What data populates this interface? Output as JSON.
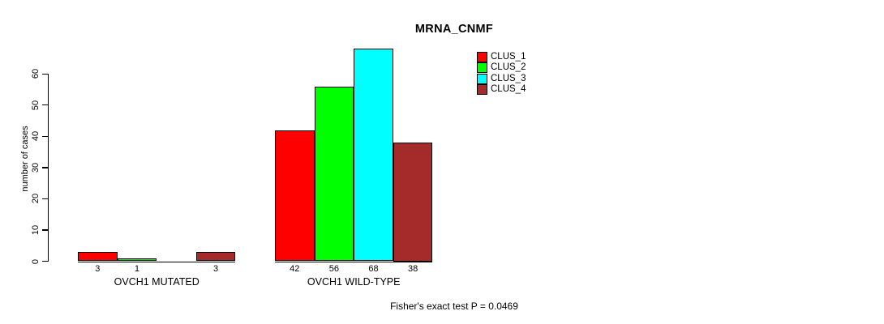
{
  "chart_data": {
    "type": "bar",
    "title": "MRNA_CNMF",
    "ylabel": "number of cases",
    "xlabel": "",
    "groups": [
      "OVCH1 MUTATED",
      "OVCH1 WILD-TYPE"
    ],
    "series": [
      {
        "name": "CLUS_1",
        "color": "#FF0000",
        "values": [
          3,
          42
        ]
      },
      {
        "name": "CLUS_2",
        "color": "#00FF00",
        "values": [
          1,
          56
        ]
      },
      {
        "name": "CLUS_3",
        "color": "#00FFFF",
        "values": [
          0,
          68
        ]
      },
      {
        "name": "CLUS_4",
        "color": "#A52A2A",
        "values": [
          3,
          38
        ]
      }
    ],
    "bar_value_labels": [
      [
        "3",
        "1",
        "",
        "3"
      ],
      [
        "42",
        "56",
        "68",
        "38"
      ]
    ],
    "yticks": [
      0,
      10,
      20,
      30,
      40,
      50,
      60
    ],
    "ylim": [
      0,
      68
    ],
    "grid": false,
    "legend": {
      "position": "top-right",
      "entries": [
        "CLUS_1",
        "CLUS_2",
        "CLUS_3",
        "CLUS_4"
      ]
    },
    "annotation": "Fisher's exact test P = 0.0469",
    "axis_color": "#000000",
    "background_color": "#FFFFFF"
  }
}
